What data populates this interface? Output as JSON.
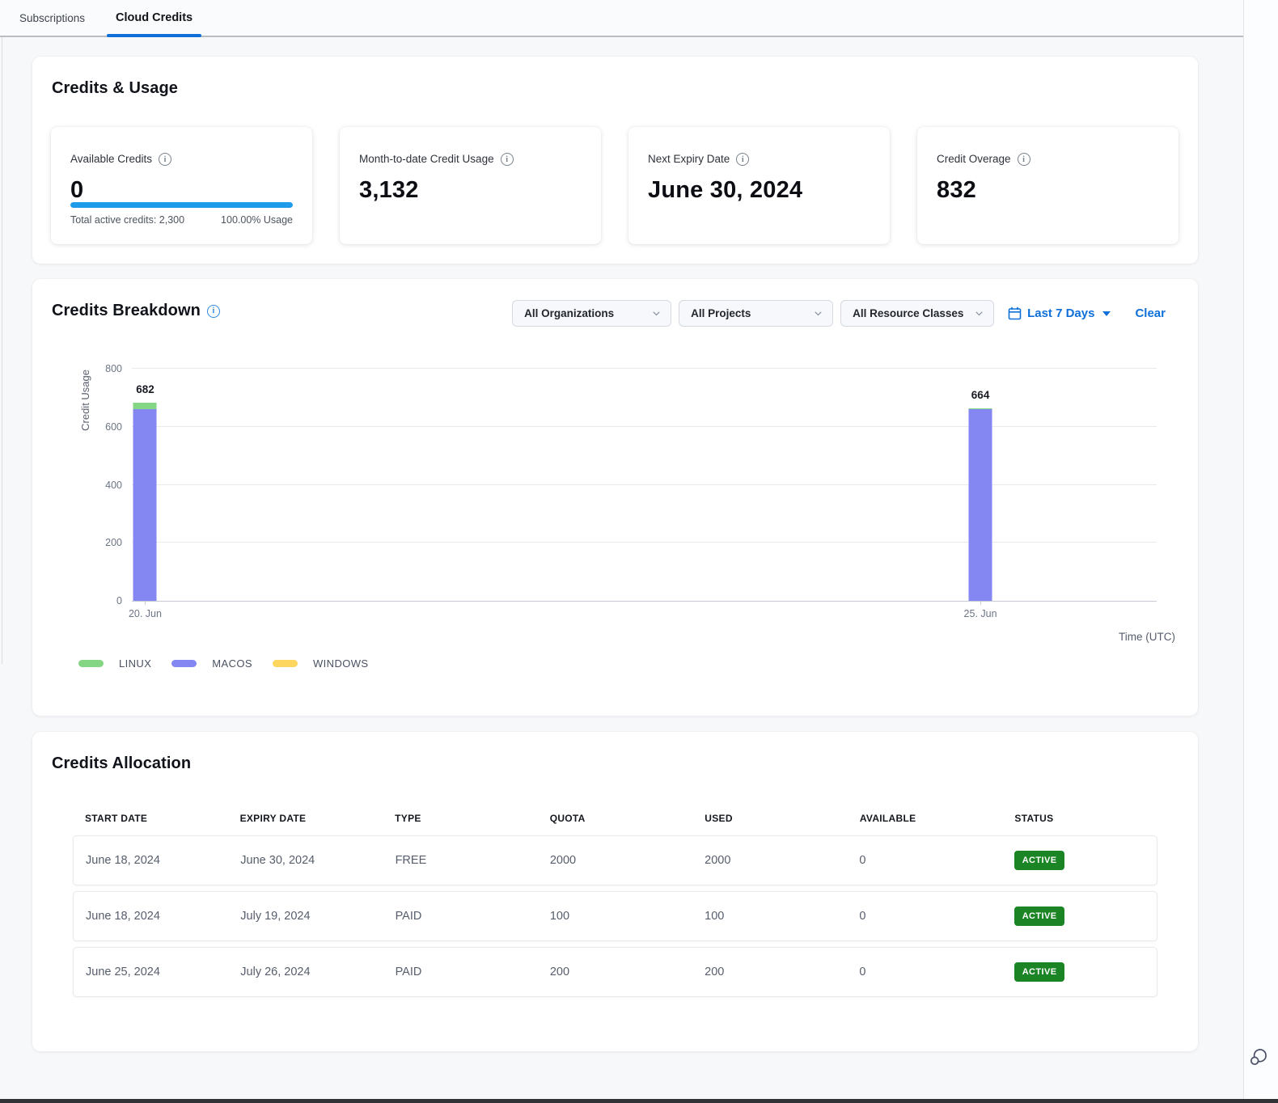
{
  "tabs": [
    {
      "label": "Subscriptions",
      "active": false
    },
    {
      "label": "Cloud Credits",
      "active": true
    }
  ],
  "credits_usage": {
    "title": "Credits & Usage",
    "cards": [
      {
        "label": "Available Credits",
        "value": "0",
        "progress_percent": 100,
        "footer_left": "Total active credits: 2,300",
        "footer_right": "100.00% Usage"
      },
      {
        "label": "Month-to-date Credit Usage",
        "value": "3,132"
      },
      {
        "label": "Next Expiry Date",
        "value": "June 30, 2024"
      },
      {
        "label": "Credit Overage",
        "value": "832"
      }
    ]
  },
  "breakdown": {
    "title": "Credits Breakdown",
    "filters": {
      "organizations": "All Organizations",
      "projects": "All Projects",
      "resource_classes": "All Resource Classes",
      "date_range": "Last 7 Days",
      "clear": "Clear"
    }
  },
  "chart_data": {
    "type": "bar",
    "stacked": true,
    "ylabel": "Credit Usage",
    "xlabel": "Time (UTC)",
    "ylim": [
      0,
      800
    ],
    "yticks": [
      0,
      200,
      400,
      600,
      800
    ],
    "grid": true,
    "legend_position": "bottom-left",
    "bars": [
      {
        "x_label": "20. Jun",
        "x_percent": 1.3,
        "total": 682,
        "segments": [
          {
            "series": "MACOS",
            "value": 660
          },
          {
            "series": "LINUX",
            "value": 22
          }
        ]
      },
      {
        "x_label": "25. Jun",
        "x_percent": 82.8,
        "total": 664,
        "segments": [
          {
            "series": "MACOS",
            "value": 661
          },
          {
            "series": "LINUX",
            "value": 3
          }
        ]
      }
    ],
    "legend": [
      {
        "name": "LINUX",
        "color": "#84d584"
      },
      {
        "name": "MACOS",
        "color": "#8486f2"
      },
      {
        "name": "WINDOWS",
        "color": "#fcd65f"
      }
    ]
  },
  "allocation": {
    "title": "Credits Allocation",
    "columns": [
      "START DATE",
      "EXPIRY DATE",
      "TYPE",
      "QUOTA",
      "USED",
      "AVAILABLE",
      "STATUS"
    ],
    "rows": [
      {
        "start_date": "June 18, 2024",
        "expiry_date": "June 30, 2024",
        "type": "FREE",
        "quota": "2000",
        "used": "2000",
        "available": "0",
        "status": "ACTIVE"
      },
      {
        "start_date": "June 18, 2024",
        "expiry_date": "July 19, 2024",
        "type": "PAID",
        "quota": "100",
        "used": "100",
        "available": "0",
        "status": "ACTIVE"
      },
      {
        "start_date": "June 25, 2024",
        "expiry_date": "July 26, 2024",
        "type": "PAID",
        "quota": "200",
        "used": "200",
        "available": "0",
        "status": "ACTIVE"
      }
    ]
  },
  "colors": {
    "accent_blue": "#0e6fd9",
    "progress_blue": "#1e9be9",
    "badge_green": "#1b8424"
  }
}
